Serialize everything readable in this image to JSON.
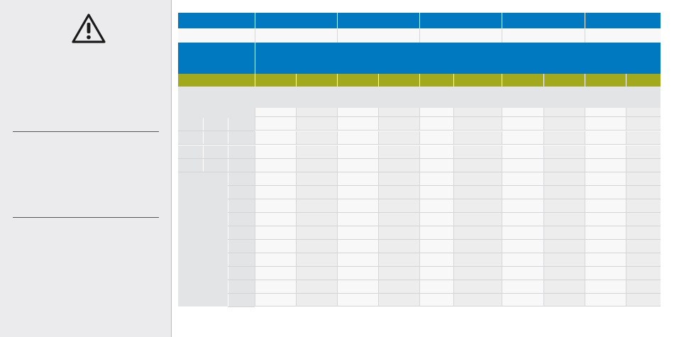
{
  "sidebar": {
    "warning_icon": "warning-triangle-icon",
    "notes": []
  },
  "table": {
    "header_columns": [
      "",
      "",
      "",
      "",
      "",
      ""
    ],
    "sub_header": "",
    "section_title": "",
    "olive_columns": [
      "",
      "",
      "",
      "",
      "",
      "",
      "",
      "",
      "",
      "",
      ""
    ],
    "group_label": "",
    "rows": []
  },
  "colors": {
    "blue": "#0079c1",
    "olive": "#a2a91c",
    "sidebar_bg": "#ebebed",
    "label_gray": "#e3e4e6"
  }
}
